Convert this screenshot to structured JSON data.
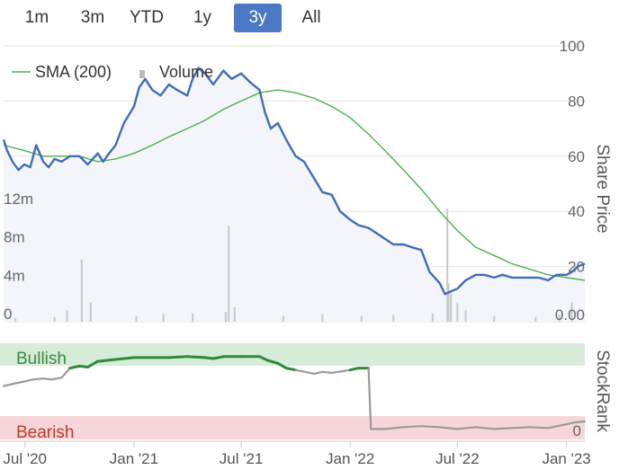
{
  "range_buttons": [
    {
      "label": "1m",
      "active": false
    },
    {
      "label": "3m",
      "active": false
    },
    {
      "label": "YTD",
      "active": false
    },
    {
      "label": "1y",
      "active": false
    },
    {
      "label": "3y",
      "active": true
    },
    {
      "label": "All",
      "active": false
    }
  ],
  "colors": {
    "price_line": "#3f6db8",
    "price_fill": "#f3f5fb",
    "sma_line": "#4caf50",
    "volume_bar": "#c8c8c8",
    "active_button": "#4a78c4",
    "bullish_band": "#d7ebd9",
    "bearish_band": "#f6d6d8",
    "rank_bullish": "#2e8b3a",
    "rank_bearish": "#9a9a9a",
    "bearish_text": "#c0392b"
  },
  "chart_data": [
    {
      "type": "line",
      "series": [
        {
          "name": "Share Price",
          "x": [
            "2020-05-26",
            "2020-06-01",
            "2020-06-10",
            "2020-06-20",
            "2020-06-30",
            "2020-07-10",
            "2020-07-20",
            "2020-08-01",
            "2020-08-10",
            "2020-08-20",
            "2020-09-01",
            "2020-09-15",
            "2020-10-01",
            "2020-10-15",
            "2020-11-01",
            "2020-11-10",
            "2020-11-20",
            "2020-12-01",
            "2020-12-15",
            "2021-01-01",
            "2021-01-10",
            "2021-01-20",
            "2021-02-01",
            "2021-02-15",
            "2021-03-01",
            "2021-03-15",
            "2021-04-01",
            "2021-04-10",
            "2021-04-20",
            "2021-05-01",
            "2021-05-15",
            "2021-06-01",
            "2021-06-15",
            "2021-07-01",
            "2021-07-15",
            "2021-08-01",
            "2021-08-10",
            "2021-08-20",
            "2021-09-01",
            "2021-09-15",
            "2021-10-01",
            "2021-10-15",
            "2021-11-01",
            "2021-11-15",
            "2021-12-01",
            "2021-12-15",
            "2022-01-01",
            "2022-01-15",
            "2022-02-01",
            "2022-02-15",
            "2022-03-01",
            "2022-03-15",
            "2022-04-01",
            "2022-04-15",
            "2022-05-01",
            "2022-05-15",
            "2022-06-01",
            "2022-06-10",
            "2022-06-20",
            "2022-07-01",
            "2022-07-15",
            "2022-08-01",
            "2022-08-15",
            "2022-09-01",
            "2022-09-15",
            "2022-10-01",
            "2022-10-15",
            "2022-11-01",
            "2022-11-15",
            "2022-12-01",
            "2022-12-15",
            "2023-01-01",
            "2023-01-10",
            "2023-01-20",
            "2023-02-01"
          ],
          "values": [
            66,
            62,
            58,
            55,
            57,
            56,
            64,
            58,
            56,
            59,
            58,
            60,
            60,
            57,
            61,
            58,
            61,
            64,
            72,
            78,
            85,
            88,
            84,
            82,
            86,
            84,
            82,
            88,
            92,
            90,
            86,
            91,
            88,
            90,
            87,
            84,
            76,
            70,
            72,
            66,
            60,
            58,
            52,
            47,
            46,
            40,
            37,
            35,
            34,
            32,
            30,
            28,
            28,
            27,
            26,
            18,
            14,
            10,
            11,
            12,
            15,
            17,
            17,
            16,
            17,
            16,
            16,
            16,
            16,
            15,
            17,
            17,
            18,
            20,
            21
          ]
        },
        {
          "name": "SMA (200)",
          "x": [
            "2020-05-26",
            "2020-07-01",
            "2020-08-01",
            "2020-09-01",
            "2020-10-01",
            "2020-11-01",
            "2020-12-01",
            "2021-01-01",
            "2021-02-01",
            "2021-03-01",
            "2021-04-01",
            "2021-05-01",
            "2021-06-01",
            "2021-07-01",
            "2021-08-01",
            "2021-09-01",
            "2021-10-01",
            "2021-11-01",
            "2021-12-01",
            "2022-01-01",
            "2022-02-01",
            "2022-03-01",
            "2022-04-01",
            "2022-05-01",
            "2022-06-01",
            "2022-07-01",
            "2022-08-01",
            "2022-09-01",
            "2022-10-01",
            "2022-11-01",
            "2022-12-01",
            "2023-01-01",
            "2023-02-01"
          ],
          "values": [
            64,
            62,
            60,
            60,
            60,
            58,
            59,
            61,
            64,
            67,
            70,
            73,
            77,
            80,
            83,
            84,
            83,
            81,
            78,
            74,
            68,
            62,
            55,
            48,
            40,
            33,
            27,
            24,
            21,
            19,
            17,
            16,
            15
          ]
        }
      ],
      "xlabel": "",
      "ylabel": "Share Price",
      "y_ticks": [
        20,
        40,
        60,
        80,
        100
      ],
      "ylim": [
        0,
        100
      ],
      "legend": "top-left"
    },
    {
      "type": "bar",
      "series": [
        {
          "name": "Volume",
          "x": [
            "2020-06-15",
            "2020-08-20",
            "2020-09-10",
            "2020-10-05",
            "2020-10-20",
            "2021-01-05",
            "2021-02-20",
            "2021-04-10",
            "2021-06-05",
            "2021-06-10",
            "2021-06-20",
            "2021-09-10",
            "2021-11-15",
            "2022-01-20",
            "2022-03-15",
            "2022-05-20",
            "2022-06-14",
            "2022-06-16",
            "2022-06-20",
            "2022-07-01",
            "2022-07-15",
            "2022-09-01",
            "2022-11-10",
            "2022-12-20",
            "2023-01-10"
          ],
          "values": [
            0.4,
            0.5,
            1.2,
            6.5,
            2.0,
            0.6,
            0.8,
            0.9,
            1.0,
            10.0,
            1.5,
            0.6,
            0.8,
            0.6,
            0.7,
            0.9,
            11.8,
            4.0,
            3.0,
            2.0,
            1.2,
            0.6,
            0.5,
            0.8,
            2.0
          ]
        }
      ],
      "y_ticks": [
        "0",
        "4m",
        "8m",
        "12m"
      ],
      "ylim": [
        0,
        12
      ],
      "y2_tick": "0.00"
    },
    {
      "type": "line",
      "ylabel": "StockRank",
      "bands": [
        {
          "label": "Bullish"
        },
        {
          "label": "Bearish"
        }
      ],
      "y_tick": "0",
      "ylim": [
        0,
        100
      ],
      "series": [
        {
          "name": "StockRank",
          "x": [
            "2020-05-26",
            "2020-06-15",
            "2020-07-01",
            "2020-07-15",
            "2020-08-01",
            "2020-08-15",
            "2020-09-01",
            "2020-09-15",
            "2020-10-01",
            "2020-10-15",
            "2020-11-01",
            "2020-12-01",
            "2021-01-01",
            "2021-02-01",
            "2021-03-01",
            "2021-04-01",
            "2021-05-01",
            "2021-05-15",
            "2021-06-01",
            "2021-07-01",
            "2021-08-01",
            "2021-08-15",
            "2021-09-01",
            "2021-09-15",
            "2021-10-01",
            "2021-11-01",
            "2021-11-15",
            "2021-12-01",
            "2022-01-01",
            "2022-01-15",
            "2022-02-01",
            "2022-02-05",
            "2022-03-01",
            "2022-04-01",
            "2022-05-01",
            "2022-06-01",
            "2022-07-01",
            "2022-08-01",
            "2022-09-01",
            "2022-10-01",
            "2022-11-01",
            "2022-12-01",
            "2023-01-01",
            "2023-01-15",
            "2023-02-01"
          ],
          "values": [
            55,
            58,
            60,
            62,
            63,
            62,
            64,
            74,
            76,
            75,
            81,
            83,
            85,
            85,
            85,
            86,
            85,
            84,
            86,
            86,
            86,
            82,
            79,
            74,
            72,
            68,
            70,
            69,
            72,
            74,
            74,
            10,
            10,
            12,
            13,
            12,
            10,
            12,
            10,
            11,
            12,
            11,
            15,
            17,
            18
          ]
        }
      ]
    }
  ],
  "x_axis": {
    "labels": [
      "Jul '20",
      "Jan '21",
      "Jul '21",
      "Jan '22",
      "Jul '22",
      "Jan '23"
    ]
  }
}
